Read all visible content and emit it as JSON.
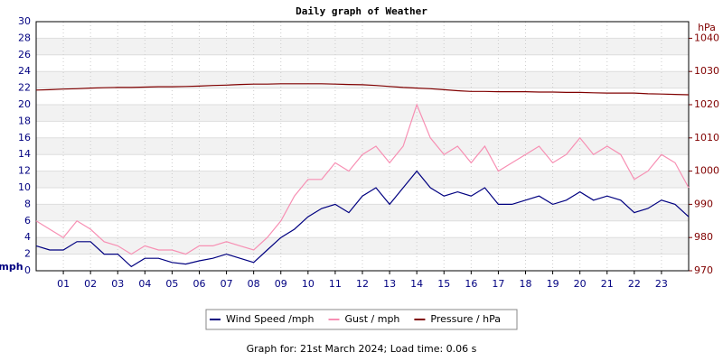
{
  "chart_data": {
    "type": "line",
    "title": "Daily graph of Weather",
    "ylabel": "mph",
    "y2label": "hPa",
    "footer": "Graph for: 21st March 2024; Load time: 0.06 s",
    "x": [
      0,
      0.5,
      1,
      1.5,
      2,
      2.5,
      3,
      3.5,
      4,
      4.5,
      5,
      5.5,
      6,
      6.5,
      7,
      7.5,
      8,
      8.5,
      9,
      9.5,
      10,
      10.5,
      11,
      11.5,
      12,
      12.5,
      13,
      13.5,
      14,
      14.5,
      15,
      15.5,
      16,
      16.5,
      17,
      17.5,
      18,
      18.5,
      19,
      19.5,
      20,
      20.5,
      21,
      21.5,
      22,
      22.5,
      23,
      23.5,
      24
    ],
    "xlim": [
      0,
      24
    ],
    "xticks": [
      {
        "value": 1,
        "label": "01"
      },
      {
        "value": 2,
        "label": "02"
      },
      {
        "value": 3,
        "label": "03"
      },
      {
        "value": 4,
        "label": "04"
      },
      {
        "value": 5,
        "label": "05"
      },
      {
        "value": 6,
        "label": "06"
      },
      {
        "value": 7,
        "label": "07"
      },
      {
        "value": 8,
        "label": "08"
      },
      {
        "value": 9,
        "label": "09"
      },
      10,
      11,
      12,
      13,
      14,
      15,
      16,
      17,
      18,
      19,
      20,
      21,
      22,
      23
    ],
    "ylim": [
      0,
      30
    ],
    "yticks": [
      0,
      2,
      4,
      6,
      8,
      10,
      12,
      14,
      16,
      18,
      20,
      22,
      24,
      26,
      28,
      30
    ],
    "y2lim": [
      970,
      1045
    ],
    "y2ticks": [
      970,
      980,
      990,
      1000,
      1010,
      1020,
      1030,
      1040
    ],
    "grid": true,
    "series": [
      {
        "name": "Gust / mph",
        "color": "#f78fb3",
        "values": [
          6,
          5,
          4,
          6,
          5,
          3.5,
          3,
          2,
          3,
          2.5,
          2.5,
          2,
          3,
          3,
          3.5,
          3,
          2.5,
          4,
          6,
          9,
          11,
          11,
          13,
          12,
          14,
          15,
          13,
          15,
          20,
          16,
          14,
          15,
          13,
          15,
          12,
          13,
          14,
          15,
          13,
          14,
          16,
          14,
          15,
          14,
          11,
          12,
          14,
          13,
          10
        ]
      },
      {
        "name": "Wind Speed /mph",
        "color": "#000080",
        "values": [
          3,
          2.5,
          2.5,
          3.5,
          3.5,
          2,
          2,
          0.5,
          1.5,
          1.5,
          1,
          0.8,
          1.2,
          1.5,
          2,
          1.5,
          1,
          2.5,
          4,
          5,
          6.5,
          7.5,
          8,
          7,
          9,
          10,
          8,
          10,
          12,
          10,
          9,
          9.5,
          9,
          10,
          8,
          8,
          8.5,
          9,
          8,
          8.5,
          9.5,
          8.5,
          9,
          8.5,
          7,
          7.5,
          8.5,
          8,
          6.5
        ]
      },
      {
        "name": "Pressure / hPa",
        "color": "#800000",
        "axis": "y2",
        "values": [
          1024.4,
          1024.5,
          1024.7,
          1024.8,
          1025,
          1025.1,
          1025.2,
          1025.2,
          1025.3,
          1025.4,
          1025.4,
          1025.5,
          1025.6,
          1025.8,
          1025.9,
          1026.1,
          1026.2,
          1026.2,
          1026.3,
          1026.3,
          1026.3,
          1026.3,
          1026.2,
          1026.1,
          1026,
          1025.8,
          1025.5,
          1025.2,
          1025,
          1024.8,
          1024.5,
          1024.2,
          1024,
          1024,
          1023.9,
          1023.9,
          1023.9,
          1023.8,
          1023.8,
          1023.7,
          1023.7,
          1023.6,
          1023.5,
          1023.5,
          1023.5,
          1023.3,
          1023.2,
          1023.1,
          1023
        ]
      }
    ],
    "legend_order": [
      1,
      0,
      2
    ]
  }
}
